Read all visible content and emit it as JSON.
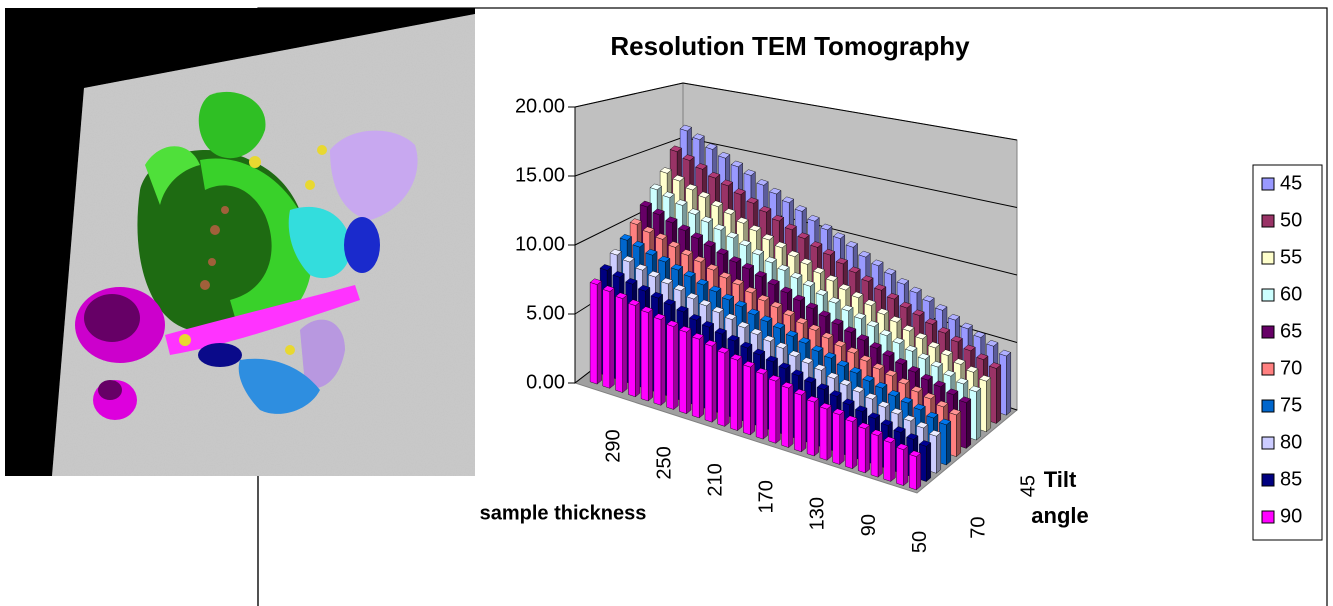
{
  "chart_data": {
    "type": "bar3d",
    "title": "Resolution TEM Tomography",
    "x_label": "sample thickness",
    "z_label": "Tilt angle",
    "categories": [
      null,
      290,
      null,
      null,
      null,
      250,
      null,
      null,
      null,
      210,
      null,
      null,
      null,
      170,
      null,
      null,
      null,
      130,
      null,
      null,
      null,
      90,
      null,
      null,
      null,
      50
    ],
    "ylim": [
      0,
      20
    ],
    "yticks": [
      {
        "value": 0,
        "label": "0.00"
      },
      {
        "value": 5,
        "label": "5.00"
      },
      {
        "value": 10,
        "label": "10.00"
      },
      {
        "value": 15,
        "label": "15.00"
      },
      {
        "value": 20,
        "label": "20.00"
      }
    ],
    "grid": true,
    "legend": "right",
    "series": [
      {
        "name": "45",
        "color": "#9999ff",
        "values": [
          16.0,
          15.6,
          15.1,
          14.7,
          14.3,
          13.9,
          13.4,
          13.0,
          12.6,
          12.2,
          11.7,
          11.3,
          10.9,
          10.5,
          10.0,
          9.6,
          9.2,
          8.7,
          8.3,
          7.9,
          7.5,
          7.0,
          6.6,
          6.2,
          5.8,
          5.3
        ]
      },
      {
        "name": "50",
        "color": "#993366",
        "values": [
          14.5,
          14.1,
          13.7,
          13.3,
          13.0,
          12.6,
          12.2,
          11.8,
          11.4,
          11.0,
          10.6,
          10.2,
          9.9,
          9.5,
          9.1,
          8.7,
          8.3,
          7.9,
          7.5,
          7.2,
          6.8,
          6.4,
          6.0,
          5.6,
          5.2,
          4.8
        ]
      },
      {
        "name": "55",
        "color": "#ffffcc",
        "values": [
          13.0,
          12.7,
          12.3,
          12.0,
          11.6,
          11.3,
          10.9,
          10.6,
          10.2,
          9.9,
          9.5,
          9.2,
          8.8,
          8.5,
          8.1,
          7.8,
          7.5,
          7.1,
          6.8,
          6.4,
          6.1,
          5.7,
          5.4,
          5.0,
          4.7,
          4.3
        ]
      },
      {
        "name": "60",
        "color": "#ccffff",
        "values": [
          12.0,
          11.7,
          11.4,
          11.0,
          10.7,
          10.4,
          10.1,
          9.8,
          9.4,
          9.1,
          8.8,
          8.5,
          8.2,
          7.8,
          7.5,
          7.2,
          6.9,
          6.6,
          6.2,
          5.9,
          5.6,
          5.3,
          5.0,
          4.6,
          4.3,
          4.0
        ]
      },
      {
        "name": "65",
        "color": "#660066",
        "values": [
          11.0,
          10.7,
          10.4,
          10.1,
          9.8,
          9.5,
          9.2,
          8.9,
          8.7,
          8.4,
          8.1,
          7.8,
          7.5,
          7.2,
          6.9,
          6.6,
          6.3,
          6.0,
          5.7,
          5.4,
          5.1,
          4.8,
          4.5,
          4.3,
          4.0,
          3.7
        ]
      },
      {
        "name": "70",
        "color": "#ff8080",
        "values": [
          10.0,
          9.7,
          9.5,
          9.2,
          8.9,
          8.7,
          8.4,
          8.1,
          7.9,
          7.6,
          7.3,
          7.1,
          6.8,
          6.5,
          6.3,
          6.0,
          5.7,
          5.5,
          5.2,
          4.9,
          4.7,
          4.4,
          4.1,
          3.9,
          3.6,
          3.3
        ]
      },
      {
        "name": "75",
        "color": "#0066cc",
        "values": [
          9.2,
          9.0,
          8.7,
          8.5,
          8.2,
          8.0,
          7.7,
          7.5,
          7.2,
          7.0,
          6.7,
          6.5,
          6.3,
          6.0,
          5.8,
          5.5,
          5.3,
          5.0,
          4.8,
          4.5,
          4.3,
          4.0,
          3.8,
          3.6,
          3.3,
          3.1
        ]
      },
      {
        "name": "80",
        "color": "#ccccff",
        "values": [
          8.5,
          8.3,
          8.0,
          7.8,
          7.6,
          7.4,
          7.1,
          6.9,
          6.7,
          6.5,
          6.2,
          6.0,
          5.8,
          5.6,
          5.3,
          5.1,
          4.9,
          4.6,
          4.4,
          4.2,
          4.0,
          3.7,
          3.5,
          3.3,
          3.1,
          2.8
        ]
      },
      {
        "name": "85",
        "color": "#000080",
        "values": [
          7.8,
          7.6,
          7.4,
          7.2,
          7.0,
          6.8,
          6.6,
          6.3,
          6.1,
          5.9,
          5.7,
          5.5,
          5.3,
          5.1,
          4.9,
          4.7,
          4.5,
          4.3,
          4.1,
          3.8,
          3.6,
          3.4,
          3.2,
          3.0,
          2.8,
          2.6
        ]
      },
      {
        "name": "90",
        "color": "#ff00ff",
        "values": [
          7.2,
          7.0,
          6.8,
          6.6,
          6.4,
          6.2,
          6.0,
          5.9,
          5.7,
          5.5,
          5.3,
          5.1,
          4.9,
          4.7,
          4.5,
          4.3,
          4.1,
          3.9,
          3.7,
          3.6,
          3.4,
          3.2,
          3.0,
          2.8,
          2.6,
          2.4
        ]
      }
    ]
  }
}
